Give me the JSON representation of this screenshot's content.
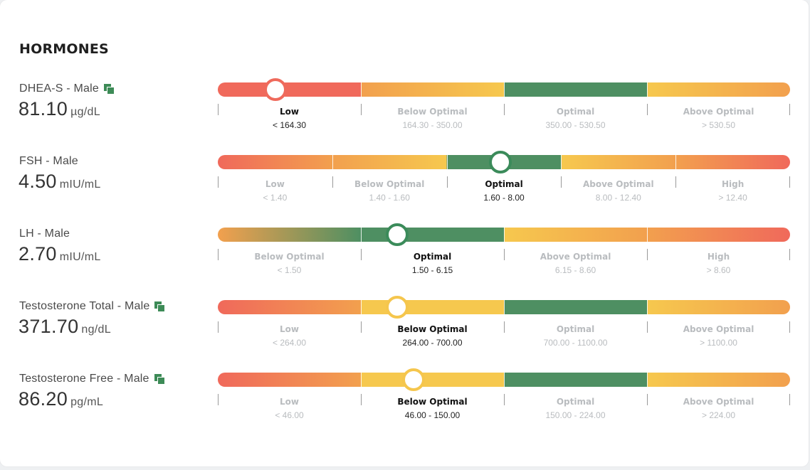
{
  "section": {
    "title": "HORMONES"
  },
  "colors": {
    "red": "#f0695b",
    "orange": "#f2a04e",
    "yellow": "#f6c84e",
    "green": "#4e8f62",
    "knob_red": "#ef6a5c",
    "knob_yellow": "#f5c64d",
    "knob_green": "#3b8b5a",
    "copy_icon": "#3d8b57"
  },
  "markers": [
    {
      "name": "DHEA-S - Male",
      "has_copy_icon": true,
      "value": "81.10",
      "unit": "µg/dL",
      "knob_fraction": 0.101,
      "knob_color": "knob_red",
      "segments": [
        {
          "label": "Low",
          "range": "< 164.30",
          "active": true,
          "from": "red",
          "to": "red"
        },
        {
          "label": "Below Optimal",
          "range": "164.30 - 350.00",
          "active": false,
          "from": "orange",
          "to": "yellow"
        },
        {
          "label": "Optimal",
          "range": "350.00 - 530.50",
          "active": false,
          "from": "green",
          "to": "green"
        },
        {
          "label": "Above Optimal",
          "range": "> 530.50",
          "active": false,
          "from": "yellow",
          "to": "orange"
        }
      ]
    },
    {
      "name": "FSH - Male",
      "has_copy_icon": false,
      "value": "4.50",
      "unit": "mIU/mL",
      "knob_fraction": 0.494,
      "knob_color": "knob_green",
      "segments": [
        {
          "label": "Low",
          "range": "< 1.40",
          "active": false,
          "from": "red",
          "to": "orange"
        },
        {
          "label": "Below Optimal",
          "range": "1.40 - 1.60",
          "active": false,
          "from": "orange",
          "to": "yellow"
        },
        {
          "label": "Optimal",
          "range": "1.60 - 8.00",
          "active": true,
          "from": "green",
          "to": "green"
        },
        {
          "label": "Above Optimal",
          "range": "8.00 - 12.40",
          "active": false,
          "from": "yellow",
          "to": "orange"
        },
        {
          "label": "High",
          "range": "> 12.40",
          "active": false,
          "from": "orange",
          "to": "red"
        }
      ]
    },
    {
      "name": "LH - Male",
      "has_copy_icon": false,
      "value": "2.70",
      "unit": "mIU/mL",
      "knob_fraction": 0.313,
      "knob_color": "knob_green",
      "segments": [
        {
          "label": "Below Optimal",
          "range": "< 1.50",
          "active": false,
          "from": "orange",
          "to": "green"
        },
        {
          "label": "Optimal",
          "range": "1.50 - 6.15",
          "active": true,
          "from": "green",
          "to": "green"
        },
        {
          "label": "Above Optimal",
          "range": "6.15 - 8.60",
          "active": false,
          "from": "yellow",
          "to": "orange"
        },
        {
          "label": "High",
          "range": "> 8.60",
          "active": false,
          "from": "orange",
          "to": "red"
        }
      ]
    },
    {
      "name": "Testosterone Total - Male",
      "has_copy_icon": true,
      "value": "371.70",
      "unit": "ng/dL",
      "knob_fraction": 0.313,
      "knob_color": "knob_yellow",
      "segments": [
        {
          "label": "Low",
          "range": "< 264.00",
          "active": false,
          "from": "red",
          "to": "orange"
        },
        {
          "label": "Below Optimal",
          "range": "264.00 - 700.00",
          "active": true,
          "from": "yellow",
          "to": "yellow"
        },
        {
          "label": "Optimal",
          "range": "700.00 - 1100.00",
          "active": false,
          "from": "green",
          "to": "green"
        },
        {
          "label": "Above Optimal",
          "range": "> 1100.00",
          "active": false,
          "from": "yellow",
          "to": "orange"
        }
      ]
    },
    {
      "name": "Testosterone Free - Male",
      "has_copy_icon": true,
      "value": "86.20",
      "unit": "pg/mL",
      "knob_fraction": 0.342,
      "knob_color": "knob_yellow",
      "segments": [
        {
          "label": "Low",
          "range": "< 46.00",
          "active": false,
          "from": "red",
          "to": "orange"
        },
        {
          "label": "Below Optimal",
          "range": "46.00 - 150.00",
          "active": true,
          "from": "yellow",
          "to": "yellow"
        },
        {
          "label": "Optimal",
          "range": "150.00 - 224.00",
          "active": false,
          "from": "green",
          "to": "green"
        },
        {
          "label": "Above Optimal",
          "range": "> 224.00",
          "active": false,
          "from": "yellow",
          "to": "orange"
        }
      ]
    }
  ]
}
